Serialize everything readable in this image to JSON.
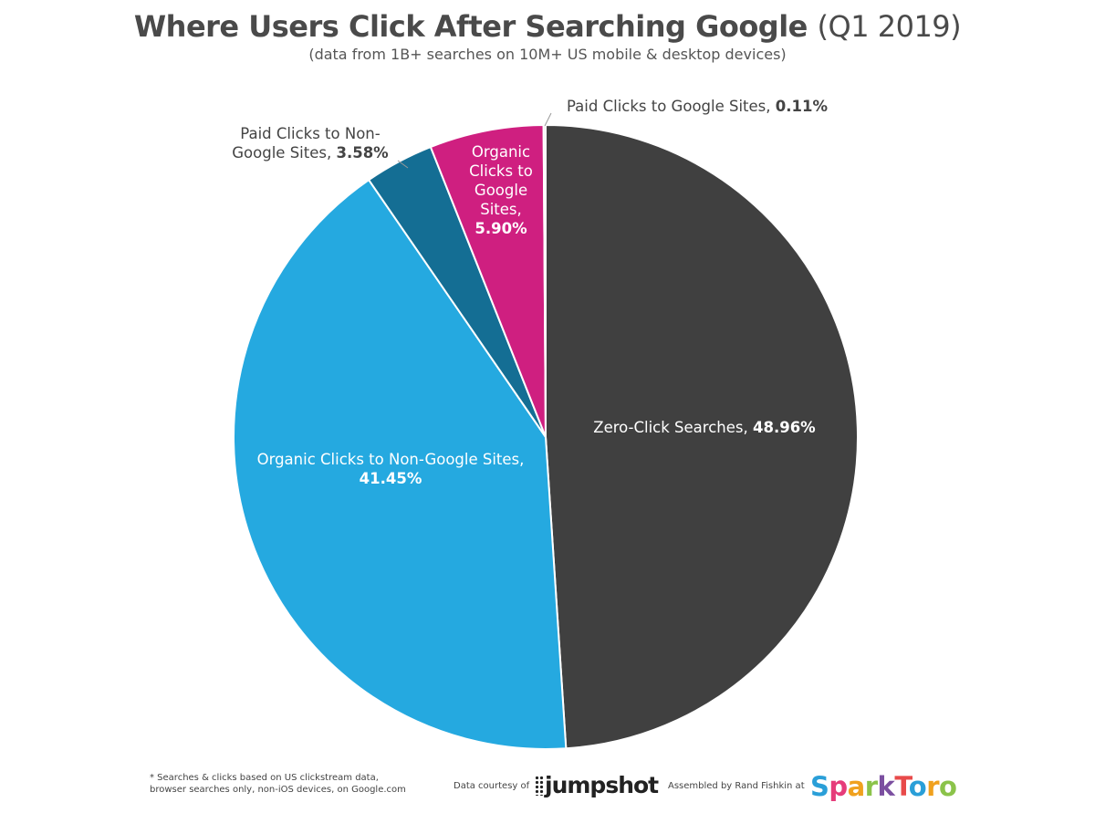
{
  "header": {
    "title": "Where Users Click After Searching Google",
    "title_year": "(Q1 2019)",
    "subtitle": "(data from 1B+ searches on 10M+ US mobile & desktop devices)"
  },
  "chart_data": {
    "type": "pie",
    "title": "Where Users Click After Searching Google (Q1 2019)",
    "subtitle": "(data from 1B+ searches on 10M+ US mobile & desktop devices)",
    "start_angle_deg": 0,
    "direction": "clockwise",
    "slices": [
      {
        "label": "Zero-Click Searches,",
        "value": 48.96,
        "value_label": "48.96%",
        "color": "#404040",
        "label_color": "#ffffff"
      },
      {
        "label": "Organic Clicks to Non-Google Sites,",
        "value": 41.45,
        "value_label": "41.45%",
        "color": "#25a9e0",
        "label_color": "#ffffff"
      },
      {
        "label": "Paid Clicks to Non-Google Sites,",
        "value": 3.58,
        "value_label": "3.58%",
        "color": "#146e94",
        "label_color": "#444444"
      },
      {
        "label": "Organic Clicks to Google Sites,",
        "value": 5.9,
        "value_label": "5.90%",
        "color": "#cf1f80",
        "label_color": "#ffffff"
      },
      {
        "label": "Paid Clicks to Google Sites,",
        "value": 0.11,
        "value_label": "0.11%",
        "color": "#e7e7e7",
        "label_color": "#444444"
      }
    ]
  },
  "footer": {
    "note_line1": "* Searches & clicks based on US clickstream data,",
    "note_line2": "browser searches only, non-iOS devices, on Google.com",
    "data_courtesy": "Data courtesy of",
    "jumpshot_logo": "jumpshot",
    "assembled_by": "Assembled by Rand Fishkin at",
    "sparktoro_letters": [
      {
        "ch": "S",
        "color": "#2a9fd8"
      },
      {
        "ch": "p",
        "color": "#e63c7a"
      },
      {
        "ch": "a",
        "color": "#f0a11e"
      },
      {
        "ch": "r",
        "color": "#8bc34a"
      },
      {
        "ch": "k",
        "color": "#7b4fa0"
      },
      {
        "ch": "T",
        "color": "#e84a4a"
      },
      {
        "ch": "o",
        "color": "#2a9fd8"
      },
      {
        "ch": "r",
        "color": "#f0a11e"
      },
      {
        "ch": "o",
        "color": "#8bc34a"
      }
    ]
  }
}
